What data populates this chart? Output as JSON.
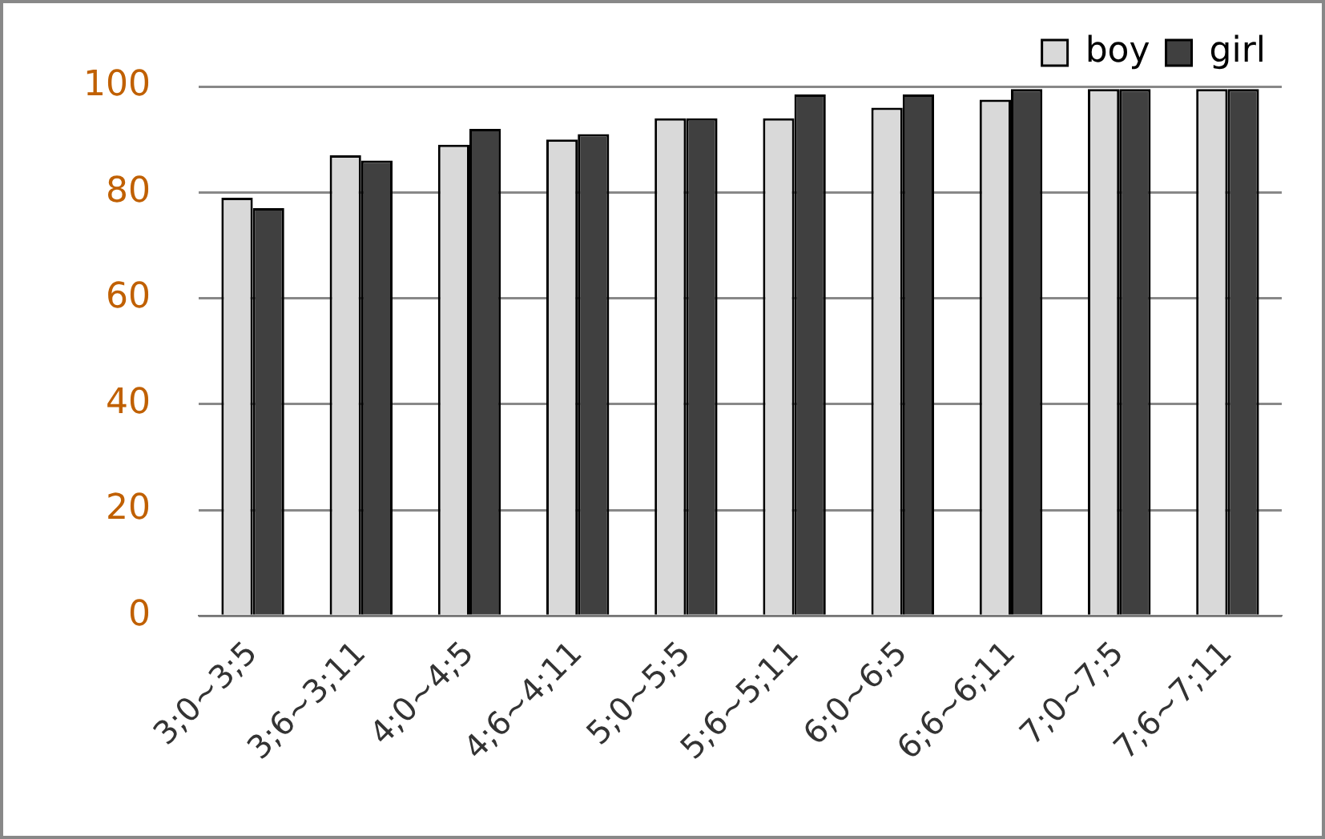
{
  "chart_data": {
    "type": "bar",
    "categories": [
      "3;0~3;5",
      "3;6~3;11",
      "4;0~4;5",
      "4;6~4;11",
      "5;0~5;5",
      "5;6~5;11",
      "6;0~6;5",
      "6;6~6;11",
      "7;0~7;5",
      "7;6~7;11"
    ],
    "series": [
      {
        "name": "boy",
        "color": "#d9d9d9",
        "values": [
          79,
          87,
          89,
          90,
          94,
          94,
          96,
          97.5,
          99.5,
          99.5
        ]
      },
      {
        "name": "girl",
        "color": "#404040",
        "values": [
          77,
          86,
          92,
          91,
          94,
          98.5,
          98.5,
          99.5,
          99.5,
          99.5
        ]
      }
    ],
    "ylim": [
      0,
      100
    ],
    "yticks": [
      0,
      20,
      40,
      60,
      80,
      100
    ],
    "grid": "y",
    "legend": "top right"
  }
}
